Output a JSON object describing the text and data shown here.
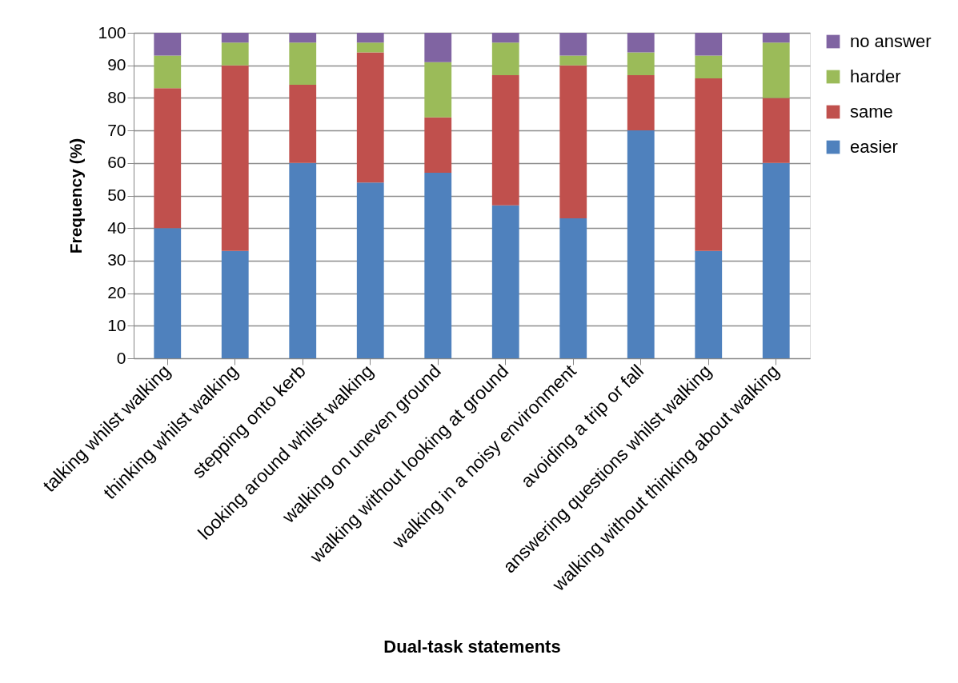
{
  "chart_data": {
    "type": "bar",
    "stacked": true,
    "xlabel": "Dual-task statements",
    "ylabel": "Frequency (%)",
    "categories": [
      "talking whilst walking",
      "thinking whilst walking",
      "stepping onto kerb",
      "looking around whilst walking",
      "walking on uneven ground",
      "walking without looking at ground",
      "walking in a noisy environment",
      "avoiding a trip or fall",
      "answering questions whilst walking",
      "walking without thinking about walking"
    ],
    "series": [
      {
        "name": "easier",
        "color": "#4f81bd",
        "values": [
          40,
          33,
          60,
          54,
          57,
          47,
          43,
          70,
          33,
          60
        ]
      },
      {
        "name": "same",
        "color": "#c0504d",
        "values": [
          43,
          57,
          24,
          40,
          17,
          40,
          47,
          17,
          53,
          20
        ]
      },
      {
        "name": "harder",
        "color": "#9bbb59",
        "values": [
          10,
          7,
          13,
          3,
          17,
          10,
          3,
          7,
          7,
          17
        ]
      },
      {
        "name": "no answer",
        "color": "#8064a2",
        "values": [
          7,
          3,
          3,
          3,
          9,
          3,
          7,
          6,
          7,
          3
        ]
      }
    ],
    "ylim": [
      0,
      100
    ],
    "yticks": [
      0,
      10,
      20,
      30,
      40,
      50,
      60,
      70,
      80,
      90,
      100
    ],
    "grid": "y",
    "legend": "right"
  }
}
